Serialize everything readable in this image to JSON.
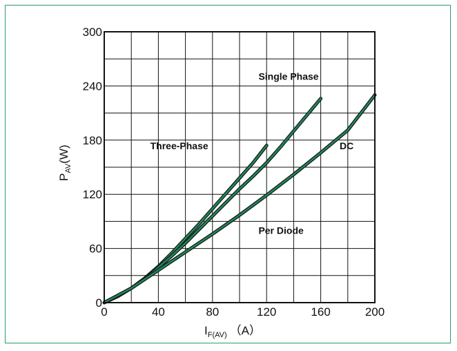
{
  "chart_data": {
    "type": "line",
    "xlim": [
      0,
      200
    ],
    "ylim": [
      0,
      300
    ],
    "x_ticks": [
      0,
      40,
      80,
      120,
      160,
      200
    ],
    "y_ticks": [
      0,
      60,
      120,
      180,
      240,
      300
    ],
    "grid": true,
    "xlabel": {
      "main": "I",
      "sub": "F(AV)",
      "unit": "（A）"
    },
    "ylabel": {
      "main": "P",
      "sub": "AV",
      "unit": "(W)"
    },
    "colors": {
      "line_outer": "#1a1a1a",
      "line_inner": "#1e8a5a",
      "frame": "#2a9a6a"
    },
    "annotations": [
      {
        "text": "Single Phase",
        "x": 114,
        "y": 247
      },
      {
        "text": "Three-Phase",
        "x": 34,
        "y": 170
      },
      {
        "text": "DC",
        "x": 174,
        "y": 170
      },
      {
        "text": "Per Diode",
        "x": 114,
        "y": 76
      }
    ],
    "series": [
      {
        "values": [
          [
            0,
            0
          ],
          [
            10,
            7
          ],
          [
            20,
            16
          ],
          [
            30,
            27
          ],
          [
            40,
            40
          ],
          [
            50,
            55
          ],
          [
            60,
            71
          ],
          [
            70,
            87
          ],
          [
            80,
            104
          ],
          [
            90,
            121
          ],
          [
            100,
            138
          ],
          [
            110,
            155
          ],
          [
            120,
            174
          ]
        ]
      },
      {
        "values": [
          [
            0,
            0
          ],
          [
            10,
            7
          ],
          [
            20,
            16
          ],
          [
            30,
            26
          ],
          [
            40,
            39
          ],
          [
            50,
            52
          ],
          [
            60,
            66
          ],
          [
            70,
            81
          ],
          [
            80,
            96
          ],
          [
            90,
            111
          ],
          [
            100,
            126
          ],
          [
            110,
            140
          ],
          [
            120,
            155
          ],
          [
            130,
            172
          ],
          [
            140,
            190
          ],
          [
            150,
            208
          ],
          [
            160,
            226
          ]
        ]
      },
      {
        "values": [
          [
            0,
            0
          ],
          [
            20,
            16
          ],
          [
            40,
            36
          ],
          [
            60,
            56
          ],
          [
            80,
            76
          ],
          [
            100,
            97
          ],
          [
            120,
            119
          ],
          [
            140,
            142
          ],
          [
            160,
            166
          ],
          [
            180,
            191
          ],
          [
            200,
            230
          ]
        ]
      }
    ]
  }
}
